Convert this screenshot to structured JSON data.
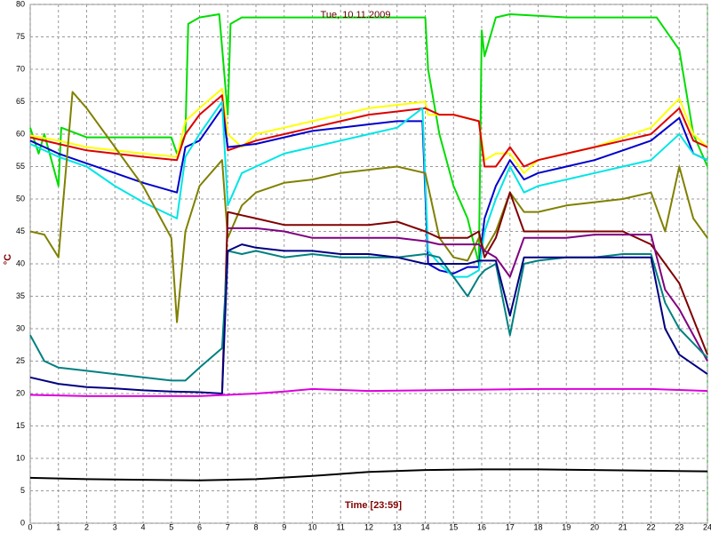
{
  "chart_data": {
    "type": "line",
    "title": "Tue, 10.11.2009",
    "x_label": "Time [23:59]",
    "y_label": "°C",
    "xlim": [
      0,
      24
    ],
    "xticks": [
      0,
      1,
      2,
      3,
      4,
      5,
      6,
      7,
      8,
      9,
      10,
      11,
      12,
      13,
      14,
      15,
      16,
      17,
      18,
      19,
      20,
      21,
      22,
      23,
      24
    ],
    "ylim": [
      0,
      80
    ],
    "yticks": [
      0,
      5,
      10,
      15,
      20,
      25,
      30,
      35,
      40,
      45,
      50,
      55,
      60,
      65,
      70,
      75,
      80
    ],
    "grid": true,
    "series": [
      {
        "color": "#00dd00",
        "x": [
          0,
          0.3,
          0.5,
          1,
          1.1,
          2,
          3,
          4,
          5,
          5.2,
          5.5,
          5.6,
          6,
          6.7,
          7,
          7.1,
          7.5,
          9,
          11,
          13,
          14,
          14.1,
          14.5,
          15,
          15.5,
          15.9,
          16,
          16.1,
          16.5,
          17,
          19,
          21,
          22,
          22.2,
          23,
          23.5,
          24
        ],
        "values": [
          61,
          57,
          60,
          52,
          61,
          59.5,
          59.5,
          59.5,
          59.5,
          57,
          60,
          77,
          78,
          78.5,
          63,
          77,
          78,
          78,
          78,
          78,
          78,
          70,
          60,
          52,
          47,
          40,
          76,
          72,
          78,
          78.5,
          78,
          78,
          78,
          78,
          73,
          60,
          55
        ]
      },
      {
        "color": "#ffff00",
        "x": [
          0,
          1,
          2,
          3,
          4,
          5.2,
          5.5,
          6,
          6.8,
          7,
          7.5,
          8,
          9,
          10,
          11,
          12,
          13,
          14,
          14.1,
          15,
          15.9,
          16.1,
          16.5,
          17,
          17.5,
          18,
          19,
          20,
          21,
          22,
          23,
          23.5,
          24
        ],
        "values": [
          59.8,
          59,
          58,
          57.5,
          57,
          56.5,
          62,
          64,
          67,
          60,
          58,
          60,
          61,
          62,
          63,
          64,
          64.5,
          65,
          63,
          63,
          62,
          56,
          57,
          57,
          54,
          56,
          57,
          58,
          59.5,
          61,
          65.5,
          60,
          58
        ]
      },
      {
        "color": "#dd0000",
        "x": [
          0,
          1,
          2,
          3,
          4,
          5.2,
          5.5,
          6,
          6.8,
          7,
          8,
          9,
          10,
          11,
          12,
          13,
          14,
          14.5,
          15,
          15.9,
          16.1,
          16.5,
          17,
          17.5,
          18,
          19,
          20,
          21,
          22,
          23,
          23.5,
          24
        ],
        "values": [
          59.5,
          58.5,
          57.5,
          57,
          56.5,
          56,
          60,
          63,
          66,
          57.5,
          59,
          60,
          61,
          62,
          63,
          63.5,
          64,
          63,
          63,
          62,
          55,
          55,
          58,
          55,
          56,
          57,
          58,
          59,
          60,
          64,
          59,
          58
        ]
      },
      {
        "color": "#0000cc",
        "x": [
          0,
          1,
          2,
          3,
          4,
          5.2,
          5.5,
          6,
          6.8,
          7,
          8,
          9,
          10,
          11,
          12,
          13,
          13.9,
          14.1,
          14.5,
          15,
          15.5,
          15.9,
          16.1,
          16.5,
          17,
          17.5,
          18,
          19,
          20,
          21,
          22,
          23,
          23.5,
          24
        ],
        "values": [
          59,
          57,
          55.5,
          54,
          52.5,
          51,
          58,
          59,
          64,
          58,
          58.5,
          59.5,
          60.5,
          61,
          61.5,
          62,
          62,
          40,
          39,
          38.5,
          39.5,
          39.5,
          47,
          52,
          56,
          53,
          54,
          55,
          56,
          57.5,
          59,
          62.5,
          57,
          56
        ]
      },
      {
        "color": "#00e5e5",
        "x": [
          0,
          1,
          2,
          3,
          4,
          5.2,
          5.5,
          6,
          6.8,
          7,
          7.5,
          8,
          9,
          10,
          11,
          12,
          13,
          13.9,
          14.1,
          14.5,
          15,
          15.5,
          15.9,
          16.1,
          16.5,
          17,
          17.5,
          18,
          19,
          20,
          21,
          22,
          23,
          23.5,
          24
        ],
        "values": [
          58.5,
          56.5,
          55,
          52,
          49.5,
          47,
          56.5,
          60,
          65,
          49,
          54,
          55,
          57,
          58,
          59,
          60,
          61,
          64,
          42,
          40,
          38,
          38,
          39,
          45,
          50,
          55,
          51,
          52,
          53,
          54,
          55,
          56,
          60,
          57,
          56
        ]
      },
      {
        "color": "#808000",
        "x": [
          0,
          0.5,
          1,
          1.5,
          2,
          3,
          4,
          5,
          5.2,
          5.5,
          6,
          6.8,
          7,
          7.5,
          8,
          9,
          10,
          11,
          12,
          13,
          14,
          14.5,
          15,
          15.5,
          15.9,
          16.1,
          16.5,
          17,
          17.5,
          18,
          19,
          20,
          21,
          22,
          22.5,
          23,
          23.5,
          24
        ],
        "values": [
          45,
          44.5,
          41,
          66.5,
          64,
          58,
          52,
          44,
          31,
          45,
          52,
          56,
          44,
          49,
          51,
          52.5,
          53,
          54,
          54.5,
          55,
          54,
          44,
          41,
          40.5,
          44,
          42,
          45,
          51,
          48,
          48,
          49,
          49.5,
          50,
          51,
          45,
          55,
          47,
          44
        ]
      },
      {
        "color": "#800000",
        "x": [
          6.8,
          7,
          7.5,
          8,
          9,
          10,
          11,
          12,
          13,
          14,
          14.5,
          15,
          15.5,
          15.9,
          16.1,
          16.5,
          17,
          17.5,
          18,
          19,
          20,
          21,
          22,
          23,
          24
        ],
        "values": [
          20,
          48,
          47.5,
          47,
          46,
          46,
          46,
          46,
          46.5,
          45,
          44,
          44,
          44,
          45,
          41,
          44,
          51,
          45,
          45,
          45,
          45,
          45,
          43,
          37,
          26
        ]
      },
      {
        "color": "#800080",
        "x": [
          7,
          8,
          9,
          10,
          11,
          12,
          13,
          14,
          14.5,
          15,
          15.5,
          15.9,
          16.1,
          16.5,
          17,
          17.5,
          18,
          19,
          20,
          21,
          22,
          22.5,
          23,
          24
        ],
        "values": [
          45.5,
          45.5,
          45,
          44,
          44,
          44,
          44,
          43.5,
          43,
          43,
          43,
          43,
          42,
          41,
          38,
          44,
          44,
          44,
          44.5,
          44.5,
          44.5,
          36,
          33,
          25
        ]
      },
      {
        "color": "#008080",
        "x": [
          0,
          0.5,
          1,
          2,
          3,
          4,
          5,
          5.5,
          6,
          6.8,
          7,
          7.5,
          8,
          9,
          10,
          11,
          12,
          13,
          14,
          14.5,
          15,
          15.5,
          15.9,
          16.1,
          16.5,
          17,
          17.5,
          18,
          19,
          20,
          21,
          22,
          22.5,
          23,
          24
        ],
        "values": [
          29,
          25,
          24,
          23.5,
          23,
          22.5,
          22,
          22,
          24,
          27,
          42,
          41.5,
          42,
          41,
          41.5,
          41,
          41,
          41,
          41.5,
          41,
          38,
          35,
          38,
          39,
          40,
          29,
          40,
          40.5,
          41,
          41,
          41.5,
          41.5,
          34,
          30,
          25.5
        ]
      },
      {
        "color": "#000080",
        "x": [
          0,
          1,
          2,
          3,
          4,
          5,
          6,
          6.8,
          7,
          7.5,
          8,
          9,
          10,
          11,
          12,
          13,
          14,
          14.5,
          15,
          15.5,
          15.9,
          16.1,
          16.5,
          17,
          17.5,
          18,
          19,
          20,
          21,
          22,
          22.5,
          23,
          24
        ],
        "values": [
          22.5,
          21.5,
          21,
          20.8,
          20.5,
          20.3,
          20.2,
          20,
          42,
          43,
          42.5,
          42,
          42,
          41.5,
          41.5,
          41,
          40,
          40,
          40,
          40,
          40.5,
          40.5,
          40.5,
          32,
          41,
          41,
          41,
          41,
          41,
          41,
          30,
          26,
          23
        ]
      },
      {
        "color": "#dd00dd",
        "x": [
          0,
          2,
          4,
          6,
          7,
          8,
          9,
          10,
          12,
          14,
          16,
          18,
          20,
          22,
          24
        ],
        "values": [
          19.8,
          19.6,
          19.6,
          19.6,
          19.8,
          20,
          20.3,
          20.7,
          20.4,
          20.5,
          20.6,
          20.7,
          20.7,
          20.7,
          20.4
        ]
      },
      {
        "color": "#000000",
        "x": [
          0,
          2,
          4,
          6,
          8,
          10,
          12,
          14,
          16,
          18,
          20,
          22,
          24
        ],
        "values": [
          7,
          6.8,
          6.7,
          6.6,
          6.8,
          7.3,
          7.9,
          8.2,
          8.3,
          8.3,
          8.2,
          8.1,
          8
        ]
      }
    ]
  }
}
